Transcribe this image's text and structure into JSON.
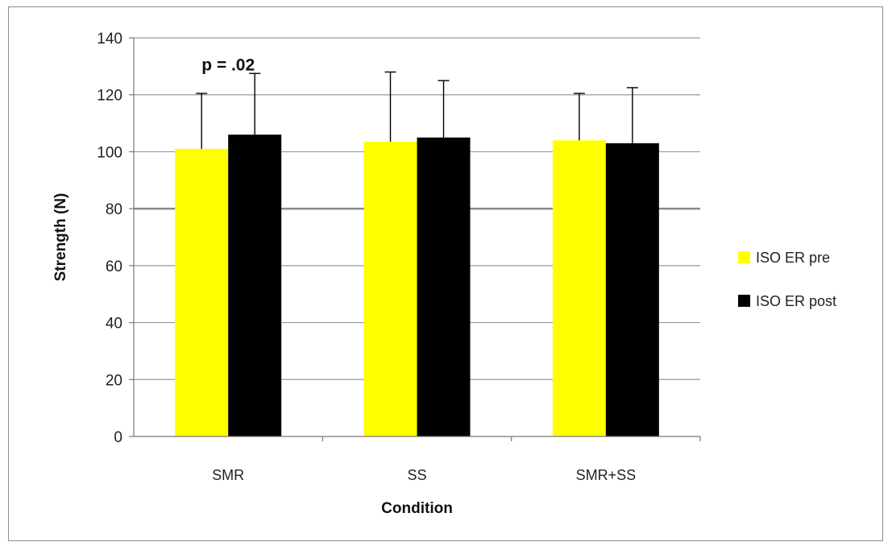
{
  "chart_data": {
    "type": "bar",
    "categories": [
      "SMR",
      "SS",
      "SMR+SS"
    ],
    "series": [
      {
        "name": "ISO ER pre",
        "color": "#ffff00",
        "values": [
          101,
          103.5,
          104
        ],
        "error": [
          19.5,
          24.5,
          16.5
        ]
      },
      {
        "name": "ISO ER post",
        "color": "#000000",
        "values": [
          106,
          105,
          103
        ],
        "error": [
          21.5,
          20,
          19.5
        ]
      }
    ],
    "xlabel": "Condition",
    "ylabel": "Strength (N)",
    "ylim": [
      0,
      140
    ],
    "yticks": [
      0,
      20,
      40,
      60,
      80,
      100,
      120,
      140
    ],
    "grid": true,
    "legend_position": "right",
    "annotations": [
      {
        "text": "p = .02",
        "category": "SMR"
      }
    ]
  }
}
